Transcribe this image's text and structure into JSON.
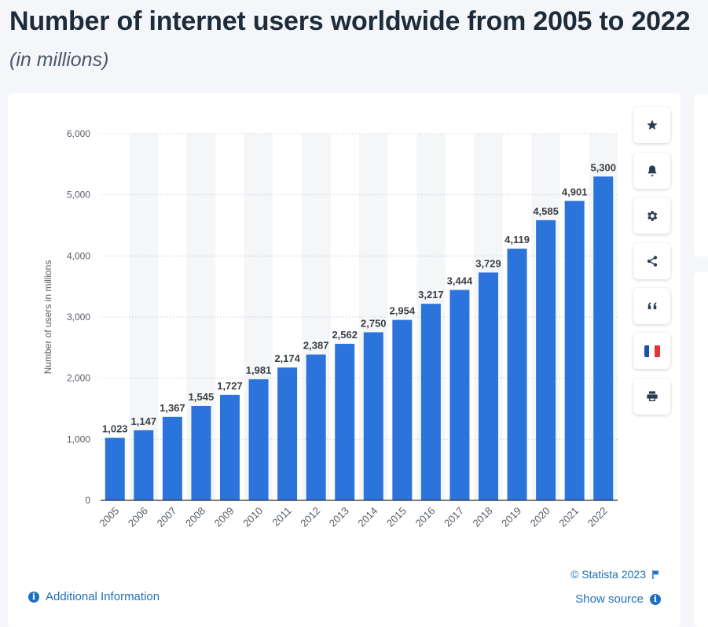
{
  "header": {
    "title": "Number of internet users worldwide from 2005 to 2022",
    "subtitle": "(in millions)"
  },
  "colors": {
    "bar": "#2b74dc",
    "accent": "#1f6fbf",
    "text_dark": "#1d2b3a"
  },
  "toolbar": {
    "buttons": [
      {
        "name": "favorite",
        "icon": "star-icon"
      },
      {
        "name": "notification",
        "icon": "bell-icon"
      },
      {
        "name": "settings",
        "icon": "gear-icon"
      },
      {
        "name": "share",
        "icon": "share-icon"
      },
      {
        "name": "cite",
        "icon": "quote-icon"
      },
      {
        "name": "language",
        "icon": "french-flag-icon"
      },
      {
        "name": "print",
        "icon": "printer-icon"
      }
    ]
  },
  "footer": {
    "additional_info": "Additional Information",
    "copyright": "© Statista 2023",
    "show_source": "Show source"
  },
  "chart_data": {
    "type": "bar",
    "title": "",
    "xlabel": "",
    "ylabel": "Number of users in millions",
    "ylim": [
      0,
      6000
    ],
    "yticks": [
      0,
      1000,
      2000,
      3000,
      4000,
      5000,
      6000
    ],
    "ytick_labels": [
      "0",
      "1,000",
      "2,000",
      "3,000",
      "4,000",
      "5,000",
      "6,000"
    ],
    "grid": true,
    "categories": [
      "2005",
      "2006",
      "2007",
      "2008",
      "2009",
      "2010",
      "2011",
      "2012",
      "2013",
      "2014",
      "2015",
      "2016",
      "2017",
      "2018",
      "2019",
      "2020",
      "2021",
      "2022"
    ],
    "values": [
      1023,
      1147,
      1367,
      1545,
      1727,
      1981,
      2174,
      2387,
      2562,
      2750,
      2954,
      3217,
      3444,
      3729,
      4119,
      4585,
      4901,
      5300
    ],
    "value_labels": [
      "1,023",
      "1,147",
      "1,367",
      "1,545",
      "1,727",
      "1,981",
      "2,174",
      "2,387",
      "2,562",
      "2,750",
      "2,954",
      "3,217",
      "3,444",
      "3,729",
      "4,119",
      "4,585",
      "4,901",
      "5,300"
    ]
  }
}
